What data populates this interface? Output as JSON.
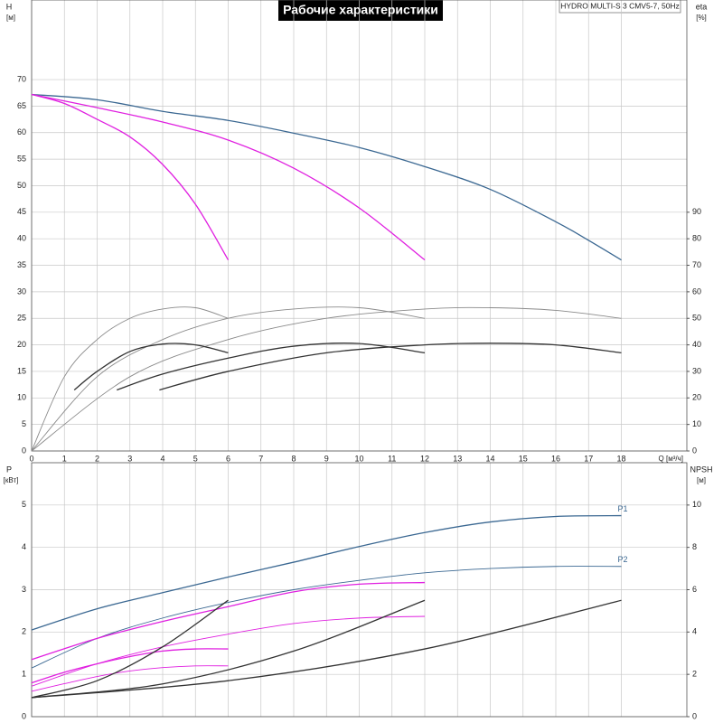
{
  "title": "Рабочие характеристики",
  "model": "HYDRO MULTI-S 3 CMV5-7, 50Hz",
  "chart_data": [
    {
      "type": "line",
      "ylabel": "H",
      "yunit": "[м]",
      "y2label": "eta",
      "y2unit": "[%]",
      "xlabel": "Q [м³/ч]",
      "xlim": [
        0,
        20
      ],
      "xticks": [
        0,
        1,
        2,
        3,
        4,
        5,
        6,
        7,
        8,
        9,
        10,
        11,
        12,
        13,
        14,
        15,
        16,
        17,
        18
      ],
      "ylim": [
        0,
        85
      ],
      "yticks": [
        0,
        5,
        10,
        15,
        20,
        25,
        30,
        35,
        40,
        45,
        50,
        55,
        60,
        65,
        70
      ],
      "y2lim": [
        0,
        170
      ],
      "y2ticks": [
        0,
        10,
        20,
        30,
        40,
        50,
        60,
        70,
        80,
        90
      ],
      "grid": true,
      "series": [
        {
          "color": "#3b6892",
          "line_width": 1.3,
          "x": [
            0,
            2,
            4,
            6,
            8,
            10,
            12,
            14,
            16,
            17,
            18
          ],
          "values": [
            67.2,
            66.2,
            64,
            62.3,
            59.9,
            57.2,
            53.6,
            49.3,
            43.2,
            39.7,
            36
          ]
        },
        {
          "color": "#e020e0",
          "line_width": 1.3,
          "x": [
            0,
            2,
            4,
            6,
            8,
            10,
            12
          ],
          "values": [
            67.2,
            64.7,
            62,
            58.6,
            53.3,
            45.8,
            36
          ]
        },
        {
          "color": "#e020e0",
          "line_width": 1.3,
          "x": [
            0,
            1,
            2,
            3,
            4,
            5,
            6
          ],
          "values": [
            67.2,
            65.5,
            62.5,
            59.2,
            54,
            46.5,
            36
          ]
        },
        {
          "color": "#8a8a8a",
          "line_width": 0.9,
          "axis": "y2",
          "x": [
            0,
            1,
            2,
            3,
            4,
            5,
            6
          ],
          "values": [
            0,
            28,
            42,
            50,
            53.5,
            54,
            50
          ]
        },
        {
          "color": "#8a8a8a",
          "line_width": 0.9,
          "axis": "y2",
          "x": [
            0,
            2,
            4,
            6,
            8,
            10,
            12
          ],
          "values": [
            0,
            28,
            42,
            50,
            53.5,
            54,
            50
          ]
        },
        {
          "color": "#8a8a8a",
          "line_width": 0.9,
          "axis": "y2",
          "x": [
            0,
            3,
            6,
            9,
            12,
            14,
            16,
            18
          ],
          "values": [
            0,
            28,
            42,
            50,
            53.5,
            54,
            53,
            50
          ]
        },
        {
          "color": "#333333",
          "line_width": 1.3,
          "axis": "y2",
          "x": [
            1.3,
            2,
            3,
            4,
            5,
            6
          ],
          "values": [
            23,
            30,
            37.5,
            40.3,
            40,
            37
          ]
        },
        {
          "color": "#333333",
          "line_width": 1.3,
          "axis": "y2",
          "x": [
            2.6,
            4,
            6,
            8,
            10,
            12
          ],
          "values": [
            23,
            29,
            35,
            39.5,
            40.5,
            37
          ]
        },
        {
          "color": "#333333",
          "line_width": 1.3,
          "axis": "y2",
          "x": [
            3.9,
            6,
            9,
            12,
            14,
            16,
            18
          ],
          "values": [
            23,
            30,
            37,
            40,
            40.6,
            40,
            37
          ]
        }
      ]
    },
    {
      "type": "line",
      "ylabel": "P",
      "yunit": "[кВт]",
      "y2label": "NPSH",
      "y2unit": "[м]",
      "xlim": [
        0,
        20
      ],
      "xticks": [
        0,
        1,
        2,
        3,
        4,
        5,
        6,
        7,
        8,
        9,
        10,
        11,
        12,
        13,
        14,
        15,
        16,
        17,
        18
      ],
      "ylim": [
        0,
        6
      ],
      "yticks": [
        0,
        1,
        2,
        3,
        4,
        5
      ],
      "y2lim": [
        0,
        12
      ],
      "y2ticks": [
        0,
        2,
        4,
        6,
        8,
        10
      ],
      "grid": true,
      "series": [
        {
          "name": "P1",
          "color": "#3b6892",
          "line_width": 1.3,
          "x": [
            0,
            2,
            4,
            6,
            8,
            10,
            12,
            14,
            16,
            18
          ],
          "values": [
            2.05,
            2.55,
            2.93,
            3.3,
            3.65,
            4.02,
            4.35,
            4.6,
            4.73,
            4.75
          ]
        },
        {
          "name": "P2",
          "color": "#3b6892",
          "line_width": 0.9,
          "x": [
            0,
            2,
            4,
            6,
            8,
            10,
            12,
            14,
            16,
            18
          ],
          "values": [
            1.15,
            1.85,
            2.33,
            2.7,
            3.0,
            3.22,
            3.4,
            3.5,
            3.55,
            3.55
          ]
        },
        {
          "color": "#e020e0",
          "line_width": 1.3,
          "x": [
            0,
            2,
            4,
            6,
            8,
            10,
            12
          ],
          "values": [
            1.35,
            1.85,
            2.25,
            2.6,
            2.95,
            3.13,
            3.17
          ]
        },
        {
          "color": "#e020e0",
          "line_width": 0.9,
          "x": [
            0,
            2,
            4,
            6,
            8,
            10,
            12
          ],
          "values": [
            0.72,
            1.25,
            1.65,
            1.95,
            2.2,
            2.33,
            2.37
          ]
        },
        {
          "color": "#e020e0",
          "line_width": 1.3,
          "x": [
            0,
            1,
            2,
            3,
            4,
            5,
            6
          ],
          "values": [
            0.8,
            1.05,
            1.25,
            1.42,
            1.55,
            1.6,
            1.6
          ]
        },
        {
          "color": "#e020e0",
          "line_width": 0.9,
          "x": [
            0,
            1,
            2,
            3,
            4,
            5,
            6
          ],
          "values": [
            0.6,
            0.78,
            0.95,
            1.08,
            1.16,
            1.2,
            1.2
          ]
        },
        {
          "color": "#333333",
          "line_width": 1.3,
          "axis": "y2",
          "x": [
            0,
            2,
            4,
            6
          ],
          "values": [
            0.9,
            1.7,
            3.3,
            5.5
          ]
        },
        {
          "color": "#333333",
          "line_width": 1.3,
          "axis": "y2",
          "x": [
            0,
            4,
            8,
            12
          ],
          "values": [
            0.9,
            1.55,
            3.1,
            5.5
          ]
        },
        {
          "color": "#333333",
          "line_width": 1.3,
          "axis": "y2",
          "x": [
            0,
            6,
            12,
            18
          ],
          "values": [
            0.9,
            1.7,
            3.2,
            5.5
          ]
        }
      ]
    }
  ]
}
